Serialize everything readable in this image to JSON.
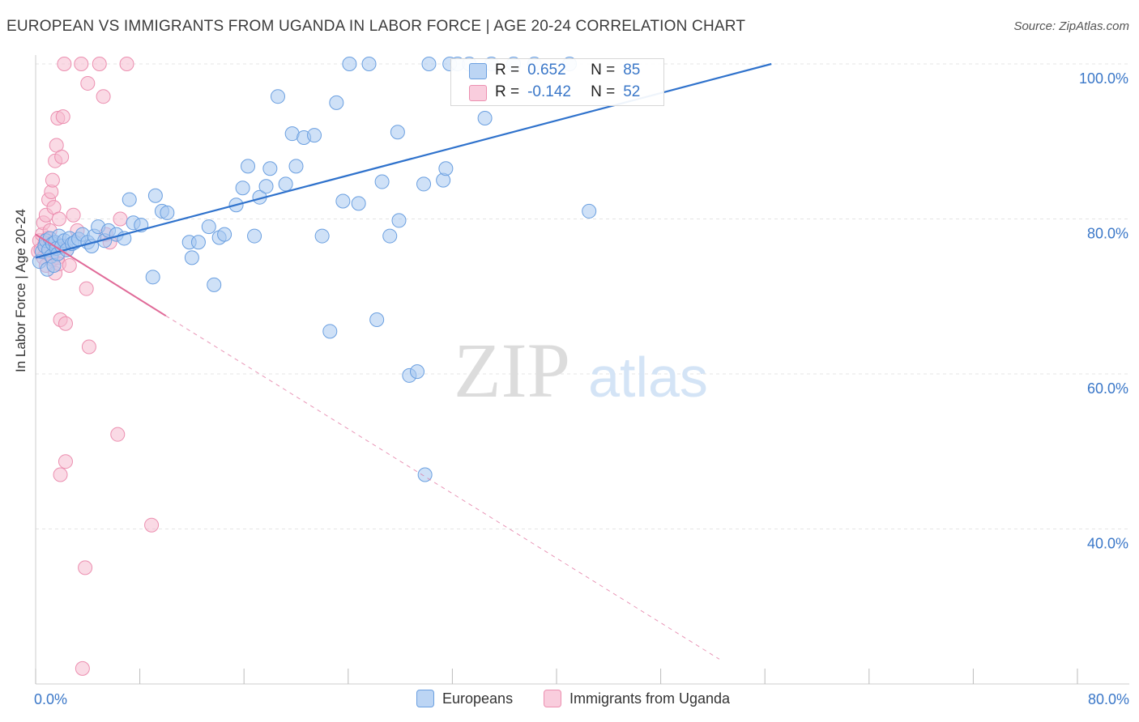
{
  "title": "EUROPEAN VS IMMIGRANTS FROM UGANDA IN LABOR FORCE | AGE 20-24 CORRELATION CHART",
  "source": "Source: ZipAtlas.com",
  "colors": {
    "european_fill": "#a8c8f0",
    "european_stroke": "#6a9fe0",
    "european_line": "#2f72cc",
    "uganda_fill": "#f6bcd0",
    "uganda_stroke": "#ec8fb0",
    "uganda_line": "#e06a98",
    "axis_label": "#3a77c8",
    "grid": "#e4e4e4"
  },
  "legend": {
    "rows": [
      {
        "r_label": "R =",
        "r_value": "0.652",
        "n_label": "N =",
        "n_value": "85"
      },
      {
        "r_label": "R =",
        "r_value": "-0.142",
        "n_label": "N =",
        "n_value": "52"
      }
    ]
  },
  "bottom_legend": {
    "europeans": "Europeans",
    "uganda": "Immigrants from Uganda"
  },
  "chart_data": {
    "type": "scatter",
    "title": "EUROPEAN VS IMMIGRANTS FROM UGANDA IN LABOR FORCE | AGE 20-24 CORRELATION CHART",
    "xlabel": "",
    "ylabel": "In Labor Force | Age 20-24",
    "xlim": [
      0,
      80
    ],
    "ylim": [
      20,
      101
    ],
    "x_tick_labels": [
      "0.0%",
      "80.0%"
    ],
    "y_ticks": [
      40,
      60,
      80,
      100
    ],
    "y_tick_labels": [
      "40.0%",
      "60.0%",
      "80.0%",
      "100.0%"
    ],
    "watermark": {
      "zip": "ZIP",
      "atlas": "atlas"
    },
    "series": [
      {
        "name": "Europeans",
        "R": 0.652,
        "N": 85,
        "trend": {
          "x0": 0,
          "y0": 75.0,
          "x1": 56.5,
          "y1": 100.0
        },
        "points": [
          [
            0.3,
            74.5
          ],
          [
            0.5,
            75.8
          ],
          [
            0.7,
            76.5
          ],
          [
            0.8,
            77.2
          ],
          [
            0.9,
            73.5
          ],
          [
            1.0,
            76.0
          ],
          [
            1.1,
            77.5
          ],
          [
            1.2,
            75.2
          ],
          [
            1.3,
            76.8
          ],
          [
            1.4,
            74.0
          ],
          [
            1.5,
            77.0
          ],
          [
            1.6,
            76.2
          ],
          [
            1.7,
            75.5
          ],
          [
            1.8,
            77.8
          ],
          [
            2.0,
            76.5
          ],
          [
            2.2,
            77.2
          ],
          [
            2.4,
            76.0
          ],
          [
            2.6,
            77.5
          ],
          [
            2.8,
            76.8
          ],
          [
            3.0,
            77.0
          ],
          [
            3.3,
            77.4
          ],
          [
            3.6,
            78.0
          ],
          [
            4.0,
            77.0
          ],
          [
            4.3,
            76.5
          ],
          [
            4.5,
            77.8
          ],
          [
            4.8,
            79.0
          ],
          [
            5.3,
            77.2
          ],
          [
            5.6,
            78.5
          ],
          [
            6.2,
            78.0
          ],
          [
            6.8,
            77.5
          ],
          [
            7.2,
            82.5
          ],
          [
            7.5,
            79.5
          ],
          [
            8.1,
            79.2
          ],
          [
            9.0,
            72.5
          ],
          [
            9.2,
            83.0
          ],
          [
            9.7,
            81.0
          ],
          [
            10.1,
            80.8
          ],
          [
            11.8,
            77.0
          ],
          [
            12.0,
            75.0
          ],
          [
            12.5,
            77.0
          ],
          [
            13.3,
            79.0
          ],
          [
            13.7,
            71.5
          ],
          [
            14.1,
            77.6
          ],
          [
            14.5,
            78.0
          ],
          [
            15.4,
            81.8
          ],
          [
            15.9,
            84.0
          ],
          [
            16.3,
            86.8
          ],
          [
            16.8,
            77.8
          ],
          [
            17.2,
            82.8
          ],
          [
            17.7,
            84.2
          ],
          [
            18.0,
            86.5
          ],
          [
            18.6,
            95.8
          ],
          [
            19.2,
            84.5
          ],
          [
            19.7,
            91.0
          ],
          [
            20.0,
            86.8
          ],
          [
            20.6,
            90.5
          ],
          [
            21.4,
            90.8
          ],
          [
            22.0,
            77.8
          ],
          [
            22.6,
            65.5
          ],
          [
            23.1,
            95.0
          ],
          [
            23.6,
            82.3
          ],
          [
            24.1,
            100.0
          ],
          [
            24.8,
            82.0
          ],
          [
            25.6,
            100.0
          ],
          [
            26.2,
            67.0
          ],
          [
            26.6,
            84.8
          ],
          [
            27.2,
            77.8
          ],
          [
            27.8,
            91.2
          ],
          [
            27.9,
            79.8
          ],
          [
            28.7,
            59.8
          ],
          [
            29.3,
            60.3
          ],
          [
            29.8,
            84.5
          ],
          [
            29.9,
            47.0
          ],
          [
            30.2,
            100.0
          ],
          [
            31.3,
            85.0
          ],
          [
            31.5,
            86.5
          ],
          [
            31.8,
            100.0
          ],
          [
            32.4,
            100.0
          ],
          [
            33.3,
            100.0
          ],
          [
            34.5,
            93.0
          ],
          [
            35.0,
            100.0
          ],
          [
            36.7,
            100.0
          ],
          [
            38.3,
            100.0
          ],
          [
            41.0,
            100.0
          ],
          [
            42.5,
            81.0
          ]
        ]
      },
      {
        "name": "Immigrants from Uganda",
        "R": -0.142,
        "N": 52,
        "trend": {
          "x0": 0,
          "y0": 78.0,
          "x1": 10.0,
          "y1": 67.5,
          "dash_x1": 52.5,
          "dash_y1": 23.2
        },
        "points": [
          [
            0.2,
            75.8
          ],
          [
            0.3,
            77.2
          ],
          [
            0.4,
            76.0
          ],
          [
            0.5,
            78.0
          ],
          [
            0.6,
            75.0
          ],
          [
            0.6,
            79.5
          ],
          [
            0.7,
            76.8
          ],
          [
            0.8,
            74.0
          ],
          [
            0.8,
            80.5
          ],
          [
            0.9,
            77.5
          ],
          [
            1.0,
            75.5
          ],
          [
            1.0,
            82.5
          ],
          [
            1.1,
            78.5
          ],
          [
            1.2,
            76.2
          ],
          [
            1.2,
            83.5
          ],
          [
            1.3,
            74.8
          ],
          [
            1.3,
            85.0
          ],
          [
            1.4,
            77.0
          ],
          [
            1.4,
            81.5
          ],
          [
            1.5,
            87.5
          ],
          [
            1.5,
            73.0
          ],
          [
            1.6,
            76.5
          ],
          [
            1.6,
            89.5
          ],
          [
            1.7,
            75.0
          ],
          [
            1.7,
            93.0
          ],
          [
            1.8,
            74.2
          ],
          [
            1.8,
            80.0
          ],
          [
            1.9,
            47.0
          ],
          [
            1.9,
            67.0
          ],
          [
            2.0,
            88.0
          ],
          [
            2.1,
            93.2
          ],
          [
            2.2,
            100.0
          ],
          [
            2.3,
            48.7
          ],
          [
            2.3,
            66.5
          ],
          [
            2.4,
            76.0
          ],
          [
            2.6,
            74.0
          ],
          [
            2.9,
            80.5
          ],
          [
            3.2,
            78.5
          ],
          [
            3.5,
            100.0
          ],
          [
            3.6,
            22.0
          ],
          [
            3.8,
            35.0
          ],
          [
            3.9,
            71.0
          ],
          [
            4.0,
            97.5
          ],
          [
            4.1,
            63.5
          ],
          [
            4.9,
            100.0
          ],
          [
            5.2,
            95.8
          ],
          [
            5.4,
            78.0
          ],
          [
            5.7,
            77.0
          ],
          [
            6.3,
            52.2
          ],
          [
            6.5,
            80.0
          ],
          [
            7.0,
            100.0
          ],
          [
            8.9,
            40.5
          ]
        ]
      }
    ]
  }
}
